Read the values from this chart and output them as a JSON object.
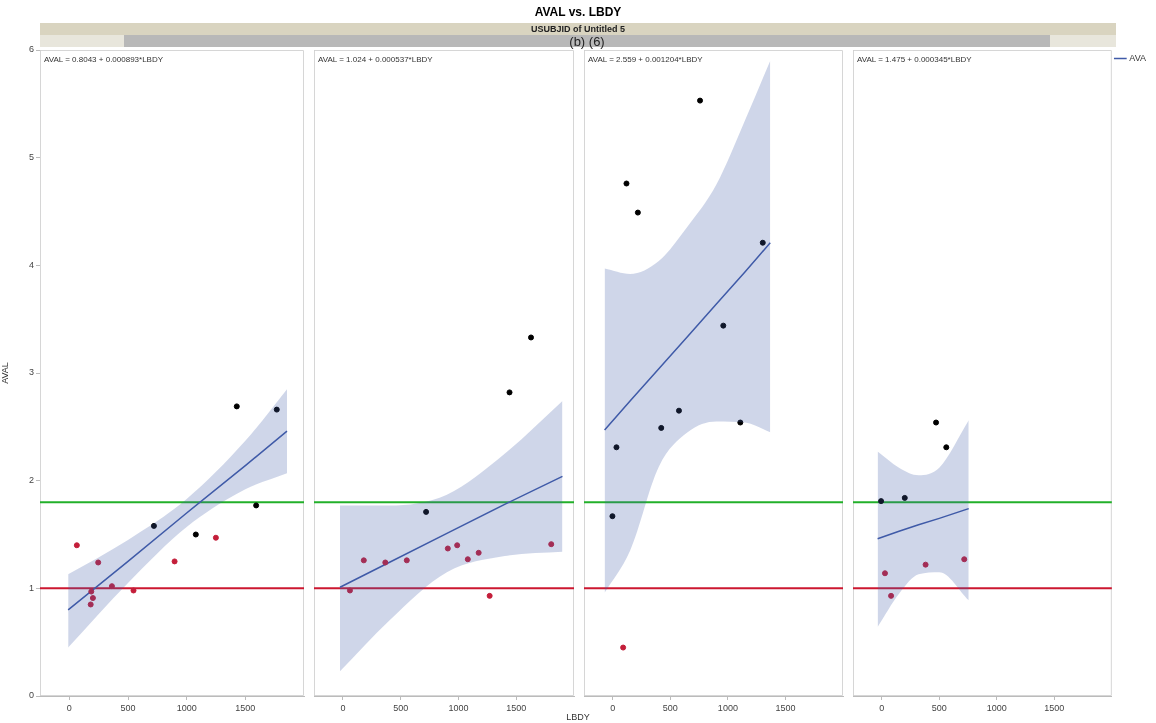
{
  "chart_data": [
    {
      "type": "other",
      "title": "AVAL vs. LBDY",
      "subtitle": "USUBJID of Untitled 5",
      "xlabel": "LBDY",
      "annotations": [
        "(b) (6)"
      ]
    },
    {
      "type": "scatter",
      "ylabel": "AVAL",
      "annotations": [
        "AVAL = 0.8043 + 0.000893*LBDY"
      ],
      "xlim": [
        -250,
        2000
      ],
      "xticks": [
        0,
        500,
        1000,
        1500
      ],
      "ylim": [
        0,
        6
      ],
      "yticks": [
        0,
        1,
        2,
        3,
        4,
        5,
        6
      ],
      "grid": false,
      "legend": false,
      "ref_lines": [
        {
          "axis": "y",
          "value": 1.8,
          "color": "#22b02a"
        },
        {
          "axis": "y",
          "value": 1.0,
          "color": "#cc1730"
        }
      ],
      "series": [
        {
          "type": "scatter",
          "marker": "circle",
          "color": "#c41e3a",
          "x": [
            64,
            246,
            363,
            187,
            201,
            182,
            547,
            897,
            1249
          ],
          "values": [
            1.4,
            1.24,
            1.02,
            0.97,
            0.91,
            0.85,
            0.98,
            1.25,
            1.47
          ]
        },
        {
          "type": "scatter",
          "marker": "circle",
          "color": "#000000",
          "x": [
            721,
            1078,
            1427,
            1768,
            1592
          ],
          "values": [
            1.58,
            1.5,
            2.69,
            2.66,
            1.77
          ]
        },
        {
          "type": "line",
          "color": "#3f5aa8",
          "x": [
            -10,
            500,
            1000,
            1500,
            1855
          ],
          "values": [
            0.8,
            1.25,
            1.7,
            2.14,
            2.46
          ],
          "lower": [
            0.45,
            1.05,
            1.57,
            1.92,
            2.07
          ],
          "upper": [
            1.13,
            1.45,
            1.83,
            2.37,
            2.85
          ]
        }
      ]
    },
    {
      "type": "scatter",
      "annotations": [
        "AVAL = 1.024 + 0.000537*LBDY"
      ],
      "xlim": [
        -250,
        2000
      ],
      "xticks": [
        0,
        500,
        1000,
        1500
      ],
      "ylim": [
        0,
        6
      ],
      "yticks": [
        0,
        1,
        2,
        3,
        4,
        5,
        6
      ],
      "tick_labels": "x",
      "grid": false,
      "legend": false,
      "ref_lines": [
        {
          "axis": "y",
          "value": 1.8,
          "color": "#22b02a"
        },
        {
          "axis": "y",
          "value": 1.0,
          "color": "#cc1730"
        }
      ],
      "series": [
        {
          "type": "scatter",
          "marker": "circle",
          "color": "#c41e3a",
          "x": [
            61,
            181,
            367,
            553,
            908,
            989,
            1081,
            1175,
            1270,
            1803
          ],
          "values": [
            0.98,
            1.26,
            1.24,
            1.26,
            1.37,
            1.4,
            1.27,
            1.33,
            0.93,
            1.41
          ]
        },
        {
          "type": "scatter",
          "marker": "circle",
          "color": "#000000",
          "x": [
            720,
            1442,
            1628
          ],
          "values": [
            1.71,
            2.82,
            3.33
          ]
        },
        {
          "type": "line",
          "color": "#3f5aa8",
          "x": [
            -25,
            400,
            900,
            1400,
            1900
          ],
          "values": [
            1.01,
            1.24,
            1.51,
            1.78,
            2.04
          ],
          "lower": [
            0.23,
            0.7,
            1.15,
            1.3,
            1.34
          ],
          "upper": [
            1.77,
            1.77,
            1.87,
            2.25,
            2.74
          ]
        }
      ]
    },
    {
      "type": "scatter",
      "annotations": [
        "AVAL = 2.559 + 0.001204*LBDY"
      ],
      "xlim": [
        -250,
        2000
      ],
      "xticks": [
        0,
        500,
        1000,
        1500
      ],
      "ylim": [
        0,
        6
      ],
      "yticks": [
        0,
        1,
        2,
        3,
        4,
        5,
        6
      ],
      "tick_labels": "x",
      "grid": false,
      "legend": false,
      "ref_lines": [
        {
          "axis": "y",
          "value": 1.8,
          "color": "#22b02a"
        },
        {
          "axis": "y",
          "value": 1.0,
          "color": "#cc1730"
        }
      ],
      "series": [
        {
          "type": "scatter",
          "marker": "circle",
          "color": "#000000",
          "x": [
            -3,
            32,
            119,
            218,
            421,
            575,
            758,
            960,
            1108,
            1303
          ],
          "values": [
            1.67,
            2.31,
            4.76,
            4.49,
            2.49,
            2.65,
            5.53,
            3.44,
            2.54,
            4.21
          ]
        },
        {
          "type": "scatter",
          "marker": "circle",
          "color": "#c41e3a",
          "x": [
            90
          ],
          "values": [
            0.45
          ]
        },
        {
          "type": "line",
          "color": "#3f5aa8",
          "x": [
            -71,
            150,
            400,
            650,
            900,
            1150,
            1368
          ],
          "values": [
            2.47,
            2.74,
            3.04,
            3.34,
            3.64,
            3.94,
            4.21
          ],
          "lower": [
            0.96,
            1.35,
            2.13,
            2.45,
            2.55,
            2.54,
            2.45
          ],
          "upper": [
            3.97,
            3.92,
            4.04,
            4.36,
            4.75,
            5.35,
            5.9
          ]
        }
      ]
    },
    {
      "type": "scatter",
      "annotations": [
        "AVAL = 1.475 + 0.000345*LBDY"
      ],
      "xlim": [
        -250,
        2000
      ],
      "xticks": [
        0,
        500,
        1000,
        1500
      ],
      "ylim": [
        0,
        6
      ],
      "yticks": [
        0,
        1,
        2,
        3,
        4,
        5,
        6
      ],
      "tick_labels": "x",
      "grid": false,
      "legend": "right",
      "ref_lines": [
        {
          "axis": "y",
          "value": 1.8,
          "color": "#22b02a"
        },
        {
          "axis": "y",
          "value": 1.0,
          "color": "#cc1730"
        }
      ],
      "series": [
        {
          "type": "scatter",
          "marker": "circle",
          "color": "#000000",
          "x": [
            -6,
            200,
            472,
            561
          ],
          "values": [
            1.81,
            1.84,
            2.54,
            2.31
          ]
        },
        {
          "type": "scatter",
          "marker": "circle",
          "color": "#c41e3a",
          "x": [
            28,
            81,
            381,
            717
          ],
          "values": [
            1.14,
            0.93,
            1.22,
            1.27
          ]
        },
        {
          "type": "line",
          "name": "AVA",
          "color": "#3f5aa8",
          "x": [
            -36,
            150,
            320,
            500,
            756
          ],
          "values": [
            1.46,
            1.53,
            1.59,
            1.65,
            1.74
          ],
          "lower": [
            0.64,
            0.95,
            1.13,
            1.15,
            0.89
          ],
          "upper": [
            2.27,
            2.12,
            2.05,
            2.12,
            2.56
          ]
        }
      ]
    }
  ]
}
